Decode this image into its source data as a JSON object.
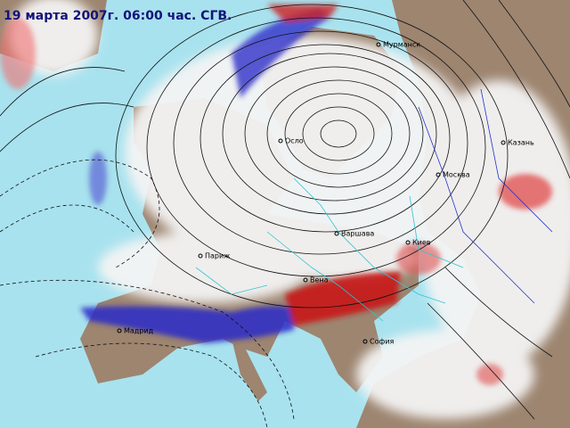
{
  "title": "19 марта 2007г. 06:00 час. СГВ.",
  "cities": [
    "Мурманск",
    "Осло",
    "Казань",
    "Москва",
    "Варшава",
    "Киев",
    "Париж",
    "Вена",
    "Мадрид",
    "София"
  ]
}
